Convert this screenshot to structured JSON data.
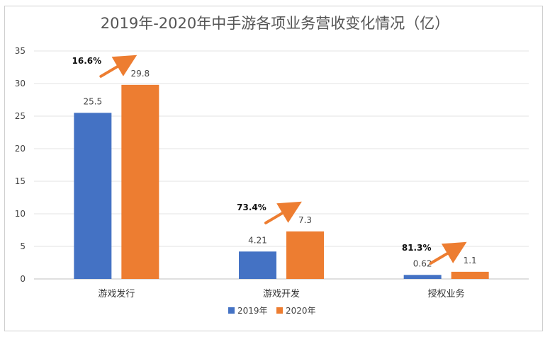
{
  "chart_data": {
    "type": "bar",
    "title": "2019年-2020年中手游各项业务营收变化情况（亿）",
    "categories": [
      "游戏发行",
      "游戏开发",
      "授权业务"
    ],
    "series": [
      {
        "name": "2019年",
        "values": [
          25.5,
          4.21,
          0.62
        ],
        "labels": [
          "25.5",
          "4.21",
          "0.62"
        ],
        "color": "#4472C4"
      },
      {
        "name": "2020年",
        "values": [
          29.8,
          7.3,
          1.1
        ],
        "labels": [
          "29.8",
          "7.3",
          "1.1"
        ],
        "color": "#ED7D31"
      }
    ],
    "growth_annotations": [
      "16.6%",
      "73.4%",
      "81.3%"
    ],
    "arrow_color": "#ED7D31",
    "ylim": [
      0,
      35
    ],
    "yticks": [
      "0",
      "5",
      "10",
      "15",
      "20",
      "25",
      "30",
      "35"
    ],
    "grid": true,
    "legend_position": "bottom"
  }
}
